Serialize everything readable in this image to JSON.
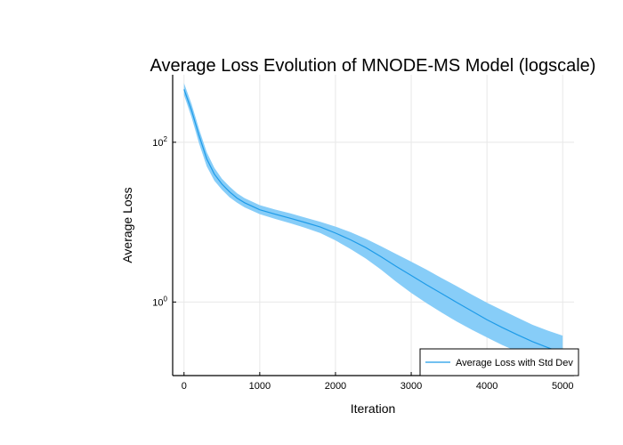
{
  "chart_data": {
    "type": "area",
    "title": "Average Loss Evolution of MNODE-MS Model (logscale)",
    "xlabel": "Iteration",
    "ylabel": "Average Loss",
    "xlim": [
      -150,
      5150
    ],
    "ylim": [
      0.12,
      700
    ],
    "yscale": "log",
    "x_ticks": [
      0,
      1000,
      2000,
      3000,
      4000,
      5000
    ],
    "y_ticks": [
      {
        "value": 1,
        "base": "10",
        "exp": "0"
      },
      {
        "value": 100,
        "base": "10",
        "exp": "2"
      }
    ],
    "grid": true,
    "legend_position": "bottom-right",
    "legend": [
      "Average Loss with Std Dev"
    ],
    "series": [
      {
        "name": "Average Loss with Std Dev",
        "color": "#1e9be8",
        "band_color": "#87cdf8",
        "x": [
          0,
          100,
          200,
          300,
          400,
          500,
          600,
          700,
          800,
          1000,
          1200,
          1400,
          1600,
          1800,
          2000,
          2200,
          2400,
          2600,
          2800,
          3000,
          3200,
          3400,
          3600,
          3800,
          4000,
          4200,
          4400,
          4600,
          4800,
          5000
        ],
        "mean": [
          460,
          250,
          120,
          62,
          40,
          30,
          24,
          20,
          17.5,
          14.3,
          12.6,
          11.2,
          9.9,
          8.7,
          7.3,
          6.0,
          4.8,
          3.7,
          2.8,
          2.15,
          1.65,
          1.28,
          0.99,
          0.77,
          0.6,
          0.48,
          0.39,
          0.32,
          0.27,
          0.23
        ],
        "upper": [
          550,
          300,
          145,
          75,
          48,
          35,
          28,
          23,
          20,
          16.3,
          14.4,
          12.9,
          11.4,
          10.1,
          8.8,
          7.5,
          6.2,
          5.0,
          4.0,
          3.2,
          2.55,
          2.0,
          1.58,
          1.24,
          0.98,
          0.79,
          0.64,
          0.52,
          0.44,
          0.38
        ],
        "lower": [
          390,
          205,
          96,
          50,
          33,
          25.5,
          20.5,
          17.5,
          15.3,
          12.6,
          11.0,
          9.7,
          8.5,
          7.3,
          5.9,
          4.6,
          3.5,
          2.55,
          1.8,
          1.3,
          0.97,
          0.74,
          0.57,
          0.45,
          0.36,
          0.29,
          0.24,
          0.2,
          0.17,
          0.145
        ]
      }
    ]
  }
}
